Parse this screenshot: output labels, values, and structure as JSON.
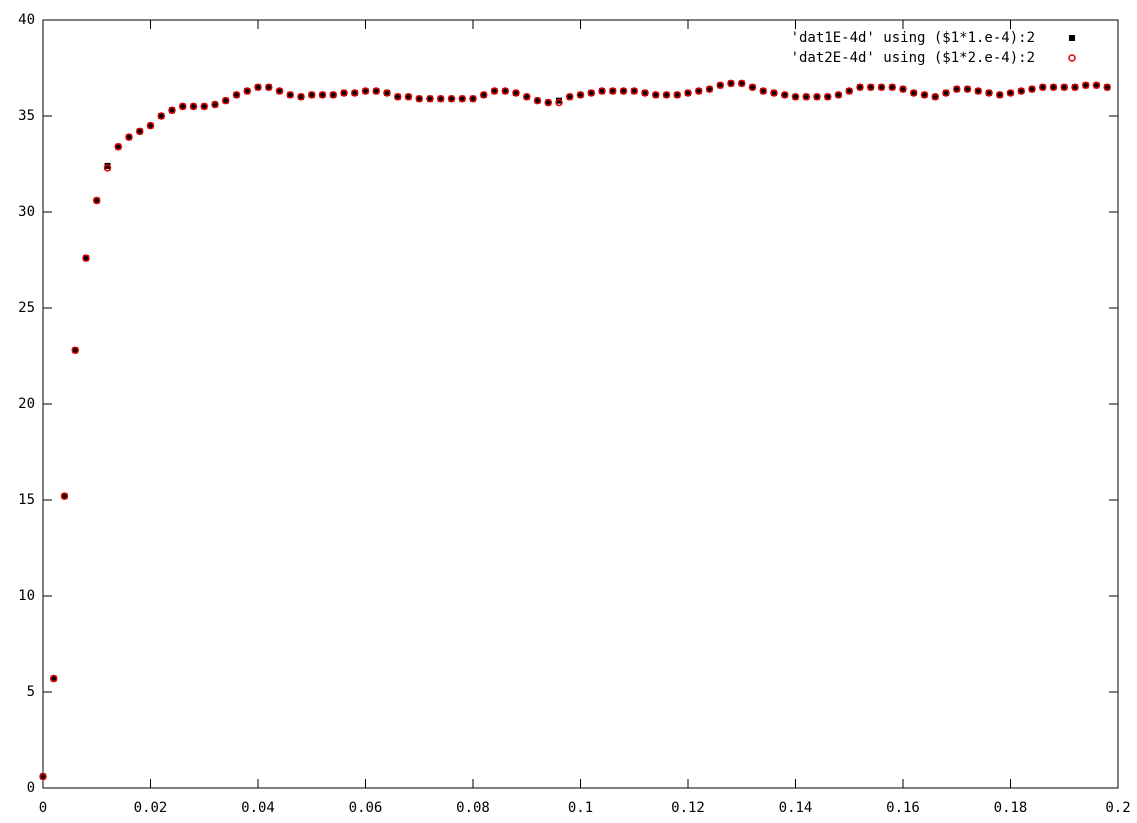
{
  "chart_data": {
    "type": "scatter",
    "x": [
      0,
      0.002,
      0.004,
      0.006,
      0.008,
      0.01,
      0.012,
      0.014,
      0.016,
      0.018,
      0.02,
      0.022,
      0.024,
      0.026,
      0.028,
      0.03,
      0.032,
      0.034,
      0.036,
      0.038,
      0.04,
      0.042,
      0.044,
      0.046,
      0.048,
      0.05,
      0.052,
      0.054,
      0.056,
      0.058,
      0.06,
      0.062,
      0.064,
      0.066,
      0.068,
      0.07,
      0.072,
      0.074,
      0.076,
      0.078,
      0.08,
      0.082,
      0.084,
      0.086,
      0.088,
      0.09,
      0.092,
      0.094,
      0.096,
      0.098,
      0.1,
      0.102,
      0.104,
      0.106,
      0.108,
      0.11,
      0.112,
      0.114,
      0.116,
      0.118,
      0.12,
      0.122,
      0.124,
      0.126,
      0.128,
      0.13,
      0.132,
      0.134,
      0.136,
      0.138,
      0.14,
      0.142,
      0.144,
      0.146,
      0.148,
      0.15,
      0.152,
      0.154,
      0.156,
      0.158,
      0.16,
      0.162,
      0.164,
      0.166,
      0.168,
      0.17,
      0.172,
      0.174,
      0.176,
      0.178,
      0.18,
      0.182,
      0.184,
      0.186,
      0.188,
      0.19,
      0.192,
      0.194,
      0.196,
      0.198
    ],
    "series": [
      {
        "name": "'dat1E-4d' using ($1*1.e-4):2",
        "color": "#000000",
        "marker": "square",
        "values": [
          0.6,
          5.7,
          15.2,
          22.8,
          27.6,
          30.6,
          32.4,
          33.4,
          33.9,
          34.2,
          34.5,
          35.0,
          35.3,
          35.5,
          35.5,
          35.5,
          35.6,
          35.8,
          36.1,
          36.3,
          36.5,
          36.5,
          36.3,
          36.1,
          36.0,
          36.1,
          36.1,
          36.1,
          36.2,
          36.2,
          36.3,
          36.3,
          36.2,
          36.0,
          36.0,
          35.9,
          35.9,
          35.9,
          35.9,
          35.9,
          35.9,
          36.1,
          36.3,
          36.3,
          36.2,
          36.0,
          35.8,
          35.7,
          35.8,
          36.0,
          36.1,
          36.2,
          36.3,
          36.3,
          36.3,
          36.3,
          36.2,
          36.1,
          36.1,
          36.1,
          36.2,
          36.3,
          36.4,
          36.6,
          36.7,
          36.7,
          36.5,
          36.3,
          36.2,
          36.1,
          36.0,
          36.0,
          36.0,
          36.0,
          36.1,
          36.3,
          36.5,
          36.5,
          36.5,
          36.5,
          36.4,
          36.2,
          36.1,
          36.0,
          36.2,
          36.4,
          36.4,
          36.3,
          36.2,
          36.1,
          36.2,
          36.3,
          36.4,
          36.5,
          36.5,
          36.5,
          36.5,
          36.6,
          36.6,
          36.5
        ]
      },
      {
        "name": "'dat2E-4d' using ($1*2.e-4):2",
        "color": "#e00000",
        "marker": "circle",
        "values": [
          0.6,
          5.7,
          15.2,
          22.8,
          27.6,
          30.6,
          32.3,
          33.4,
          33.9,
          34.2,
          34.5,
          35.0,
          35.3,
          35.5,
          35.5,
          35.5,
          35.6,
          35.8,
          36.1,
          36.3,
          36.5,
          36.5,
          36.3,
          36.1,
          36.0,
          36.1,
          36.1,
          36.1,
          36.2,
          36.2,
          36.3,
          36.3,
          36.2,
          36.0,
          36.0,
          35.9,
          35.9,
          35.9,
          35.9,
          35.9,
          35.9,
          36.1,
          36.3,
          36.3,
          36.2,
          36.0,
          35.8,
          35.7,
          35.7,
          36.0,
          36.1,
          36.2,
          36.3,
          36.3,
          36.3,
          36.3,
          36.2,
          36.1,
          36.1,
          36.1,
          36.2,
          36.3,
          36.4,
          36.6,
          36.7,
          36.7,
          36.5,
          36.3,
          36.2,
          36.1,
          36.0,
          36.0,
          36.0,
          36.0,
          36.1,
          36.3,
          36.5,
          36.5,
          36.5,
          36.5,
          36.4,
          36.2,
          36.1,
          36.0,
          36.2,
          36.4,
          36.4,
          36.3,
          36.2,
          36.1,
          36.2,
          36.3,
          36.4,
          36.5,
          36.5,
          36.5,
          36.5,
          36.6,
          36.6,
          36.5
        ]
      }
    ],
    "xlim": [
      0,
      0.2
    ],
    "ylim": [
      0,
      40
    ],
    "xticks": [
      0,
      0.02,
      0.04,
      0.06,
      0.08,
      0.1,
      0.12,
      0.14,
      0.16,
      0.18,
      0.2
    ],
    "yticks": [
      0,
      5,
      10,
      15,
      20,
      25,
      30,
      35,
      40
    ],
    "legend": "top-right"
  }
}
